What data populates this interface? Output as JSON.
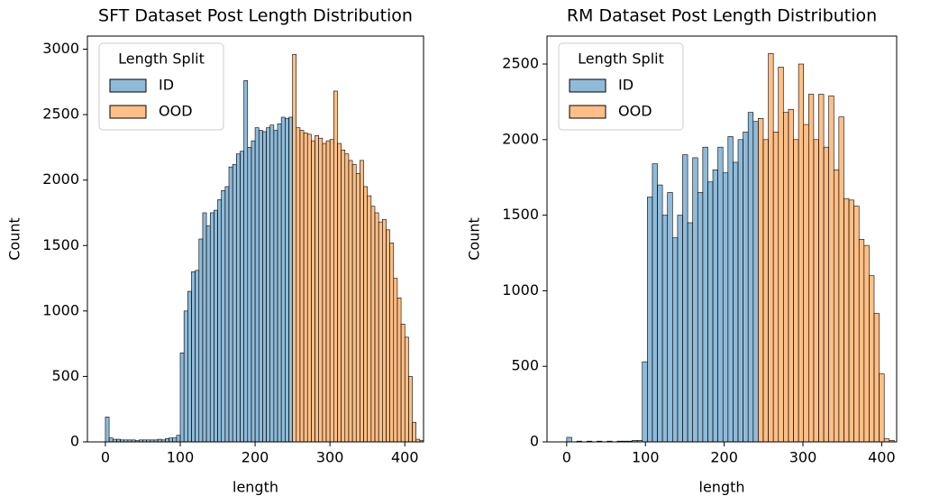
{
  "chart_data": [
    {
      "type": "histogram",
      "title": "SFT Dataset Post Length Distribution",
      "x_label": "length",
      "y_label": "Count",
      "legend_title": "Length Split",
      "legend_position": "upper left",
      "xlim": [
        -24,
        425
      ],
      "xticks": [
        0,
        100,
        200,
        300,
        400
      ],
      "ylim": [
        0,
        3100
      ],
      "yticks": [
        0,
        500,
        1000,
        1500,
        2000,
        2500,
        3000
      ],
      "bins": [
        0,
        5,
        10,
        15,
        20,
        25,
        30,
        35,
        40,
        45,
        50,
        55,
        60,
        65,
        70,
        75,
        80,
        85,
        90,
        95,
        100,
        105,
        110,
        115,
        120,
        125,
        130,
        135,
        140,
        145,
        150,
        155,
        160,
        165,
        170,
        175,
        180,
        185,
        190,
        195,
        200,
        205,
        210,
        215,
        220,
        225,
        230,
        235,
        240,
        245,
        250,
        255,
        260,
        265,
        270,
        275,
        280,
        285,
        290,
        295,
        300,
        305,
        310,
        315,
        320,
        325,
        330,
        335,
        340,
        345,
        350,
        355,
        360,
        365,
        370,
        375,
        380,
        385,
        390,
        395,
        400,
        405,
        410,
        415,
        420,
        425
      ],
      "series": [
        {
          "name": "ID",
          "color": "#1f77b4",
          "values": [
            190,
            30,
            20,
            20,
            15,
            15,
            15,
            15,
            10,
            15,
            15,
            15,
            15,
            15,
            20,
            15,
            25,
            30,
            30,
            50,
            680,
            1000,
            1150,
            1300,
            1310,
            1550,
            1750,
            1650,
            1750,
            1770,
            1850,
            1920,
            1950,
            2100,
            2120,
            2200,
            2220,
            2760,
            2250,
            2300,
            2400,
            2380,
            2370,
            2400,
            2420,
            2380,
            2430,
            2480,
            2470,
            2480,
            0,
            0,
            0,
            0,
            0,
            0,
            0,
            0,
            0,
            0,
            0,
            0,
            0,
            0,
            0,
            0,
            0,
            0,
            0,
            0,
            0,
            0,
            0,
            0,
            0,
            0,
            0,
            0,
            0,
            0,
            0,
            0,
            0,
            0,
            0
          ]
        },
        {
          "name": "OOD",
          "color": "#ff7f0e",
          "values": [
            0,
            0,
            0,
            0,
            0,
            0,
            0,
            0,
            0,
            0,
            0,
            0,
            0,
            0,
            0,
            0,
            0,
            0,
            0,
            0,
            0,
            0,
            0,
            0,
            0,
            0,
            0,
            0,
            0,
            0,
            0,
            0,
            0,
            0,
            0,
            0,
            0,
            0,
            0,
            0,
            0,
            0,
            0,
            0,
            0,
            0,
            0,
            0,
            0,
            0,
            2960,
            2400,
            2380,
            2360,
            2350,
            2300,
            2340,
            2320,
            2280,
            2300,
            2310,
            2680,
            2280,
            2230,
            2200,
            2150,
            2120,
            2050,
            2150,
            1950,
            1880,
            1800,
            1750,
            1680,
            1700,
            1620,
            1520,
            1250,
            1100,
            900,
            800,
            500,
            150,
            20,
            10
          ]
        }
      ]
    },
    {
      "type": "histogram",
      "title": "RM Dataset Post Length Distribution",
      "x_label": "length",
      "y_label": "Count",
      "legend_title": "Length Split",
      "legend_position": "upper left",
      "xlim": [
        -25,
        419
      ],
      "xticks": [
        0,
        100,
        200,
        300,
        400
      ],
      "ylim": [
        0,
        2685
      ],
      "yticks": [
        0,
        500,
        1000,
        1500,
        2000,
        2500
      ],
      "bins": [
        0,
        6.4,
        12.8,
        19.2,
        25.6,
        32,
        38.4,
        44.8,
        51.2,
        57.6,
        64,
        70.4,
        76.8,
        83.2,
        89.6,
        96,
        102.4,
        108.8,
        115.2,
        121.6,
        128,
        134.4,
        140.8,
        147.2,
        153.6,
        160,
        166.4,
        172.8,
        179.2,
        185.6,
        192,
        198.4,
        204.8,
        211.2,
        217.6,
        224,
        230.4,
        236.8,
        243.2,
        249.6,
        256,
        262.4,
        268.8,
        275.2,
        281.6,
        288,
        294.4,
        300.8,
        307.2,
        313.6,
        320,
        326.4,
        332.8,
        339.2,
        345.6,
        352,
        358.4,
        364.8,
        371.2,
        377.6,
        384,
        390.4,
        396.8,
        403.2,
        409.6,
        416
      ],
      "series": [
        {
          "name": "ID",
          "color": "#1f77b4",
          "values": [
            30,
            0,
            5,
            0,
            5,
            0,
            5,
            0,
            5,
            0,
            5,
            5,
            5,
            10,
            10,
            530,
            1620,
            1840,
            1700,
            1500,
            1650,
            1350,
            1500,
            1900,
            1450,
            1880,
            1650,
            1950,
            1720,
            1800,
            1950,
            1780,
            2020,
            1850,
            2000,
            2050,
            2180,
            2120,
            0,
            0,
            0,
            0,
            0,
            0,
            0,
            0,
            0,
            0,
            0,
            0,
            0,
            0,
            0,
            0,
            0,
            0,
            0,
            0,
            0,
            0,
            0,
            0,
            0,
            0,
            0
          ]
        },
        {
          "name": "OOD",
          "color": "#ff7f0e",
          "values": [
            0,
            0,
            0,
            0,
            0,
            0,
            0,
            0,
            0,
            0,
            0,
            0,
            0,
            0,
            0,
            0,
            0,
            0,
            0,
            0,
            0,
            0,
            0,
            0,
            0,
            0,
            0,
            0,
            0,
            0,
            0,
            0,
            0,
            0,
            0,
            0,
            0,
            0,
            2140,
            2000,
            2570,
            2050,
            2480,
            2180,
            2200,
            2000,
            2500,
            2100,
            2300,
            2000,
            2300,
            1950,
            2290,
            1800,
            2150,
            1610,
            1600,
            1560,
            1340,
            1300,
            1100,
            850,
            450,
            20,
            10
          ]
        }
      ]
    }
  ]
}
